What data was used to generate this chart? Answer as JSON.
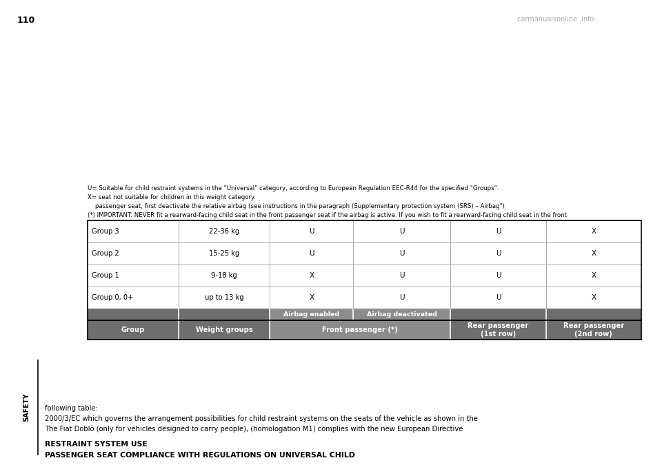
{
  "bg_color": "#ffffff",
  "page_number": "110",
  "sidebar_text": "SAFETY",
  "title_line1": "PASSENGER SEAT COMPLIANCE WITH REGULATIONS ON UNIVERSAL CHILD",
  "title_line2": "RESTRAINT SYSTEM USE",
  "intro_lines": [
    "The Fiat Doblò (only for vehicles designed to carry people), (homologation M1) complies with the new European Directive",
    "2000/3/EC which governs the arrangement possibilities for child restraint systems on the seats of the vehicle as shown in the",
    "following table:"
  ],
  "table": {
    "header_bg": "#6e6e6e",
    "header_fg": "#ffffff",
    "subheader_bg": "#8c8c8c",
    "front_passenger_bg": "#8c8c8c",
    "data_rows": [
      [
        "Group 0, 0+",
        "up to 13 kg",
        "X",
        "U",
        "U",
        "X"
      ],
      [
        "Group 1",
        "9-18 kg",
        "X",
        "U",
        "U",
        "X"
      ],
      [
        "Group 2",
        "15-25 kg",
        "U",
        "U",
        "U",
        "X"
      ],
      [
        "Group 3",
        "22-36 kg",
        "U",
        "U",
        "U",
        "X"
      ]
    ]
  },
  "footnote_lines": [
    "(*) IMPORTANT: NEVER fit a rearward-facing child seat in the front passenger seat if the airbag is active. If you wish to fit a rearward-facing child seat in the front",
    "    passenger seat, first deactivate the relative airbag (see instructions in the paragraph (Supplementary protection system (SRS) – Airbag\")",
    "X= seat not suitable for children in this weight category.",
    "U= Suitable for child restraint systems in the \"Universal\" category, according to European Regulation EEC-R44 for the specified \"Groups\"."
  ],
  "watermark": "carmanualsonline .info"
}
